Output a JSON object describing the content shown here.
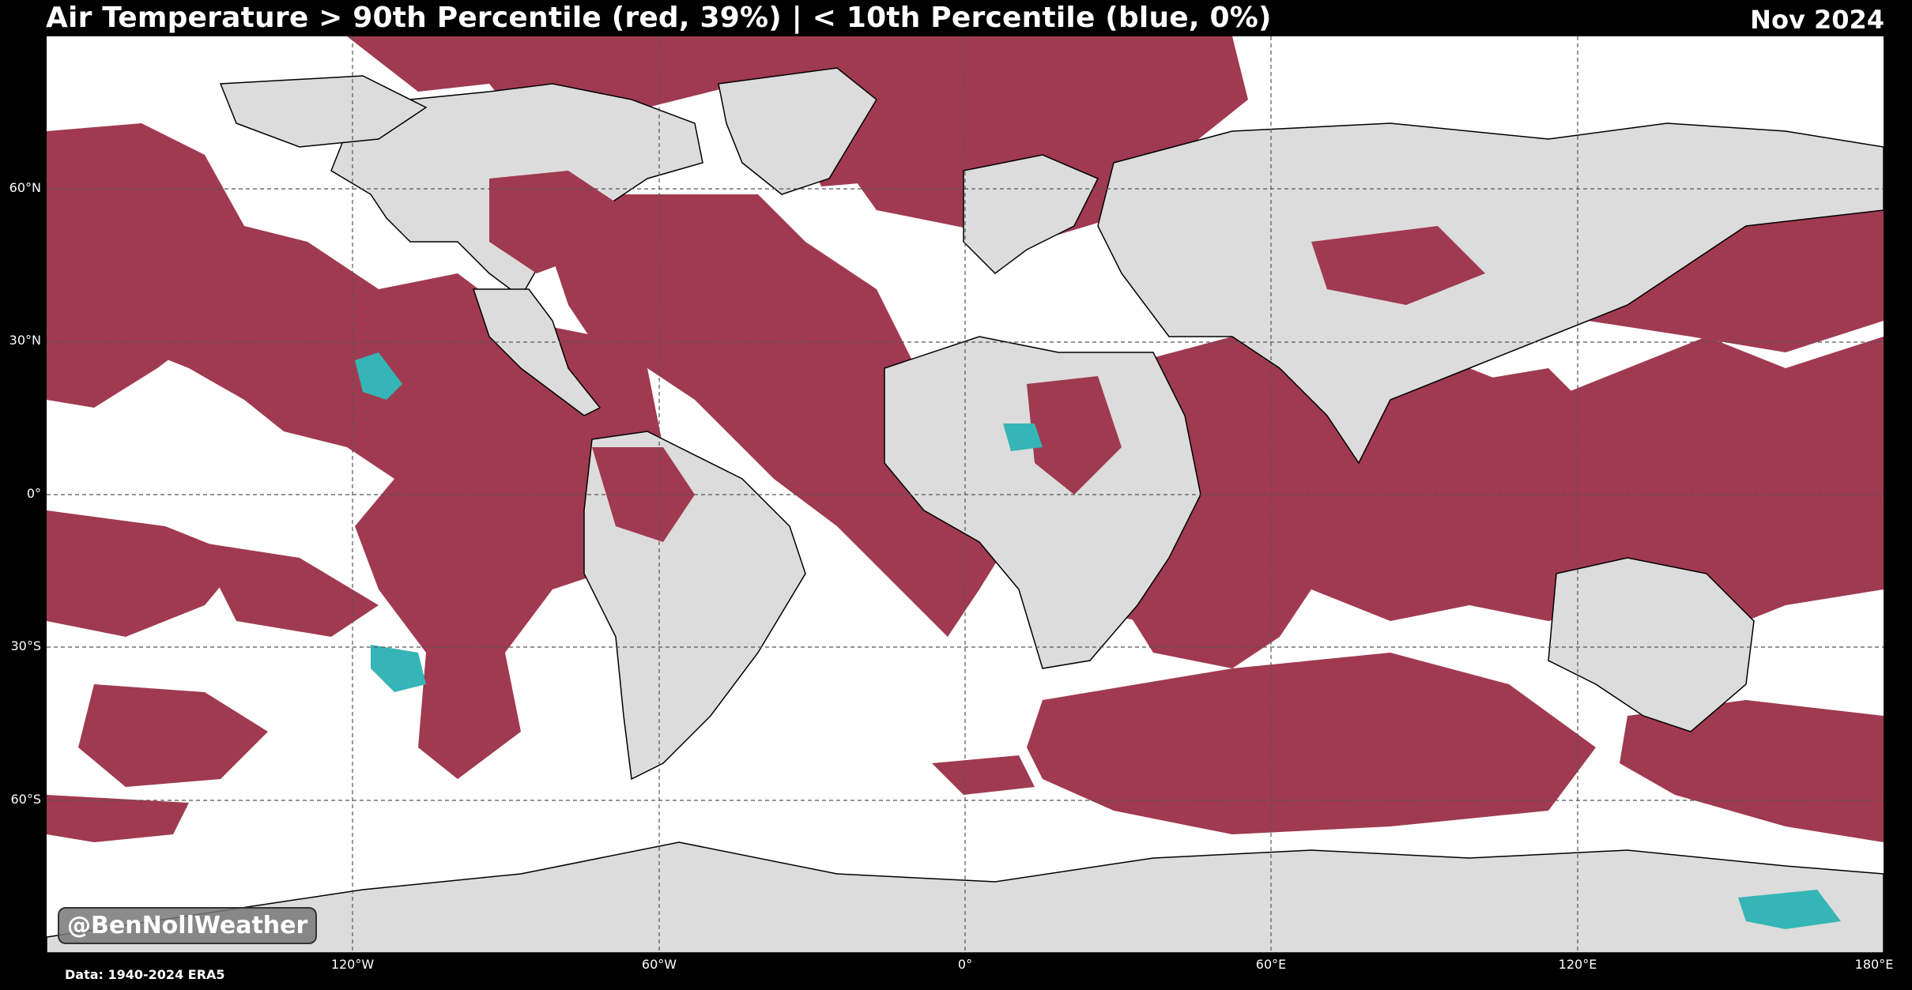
{
  "header": {
    "title": "Air Temperature > 90th Percentile (red, 39%) | < 10th Percentile (blue, 0%)",
    "date": "Nov 2024"
  },
  "legend": {
    "warm_color": "#a03a50",
    "cold_color": "#35b5b5",
    "land_color": "#dcdcdc",
    "ocean_color": "#ffffff"
  },
  "axes": {
    "lat_labels": [
      "60°N",
      "30°N",
      "0°",
      "30°S",
      "60°S"
    ],
    "lon_labels": [
      "120°W",
      "60°W",
      "0°",
      "60°E",
      "120°E",
      "180°E"
    ]
  },
  "map_data": {
    "projection": "PlateCarree",
    "lon_range": [
      -180,
      180
    ],
    "lat_range": [
      -90,
      90
    ],
    "grid_lats": [
      60,
      30,
      0,
      -30,
      -60
    ],
    "grid_lons": [
      -120,
      -60,
      0,
      60,
      120
    ]
  },
  "watermark": "@BenNollWeather",
  "source": "Data: 1940-2024 ERA5"
}
